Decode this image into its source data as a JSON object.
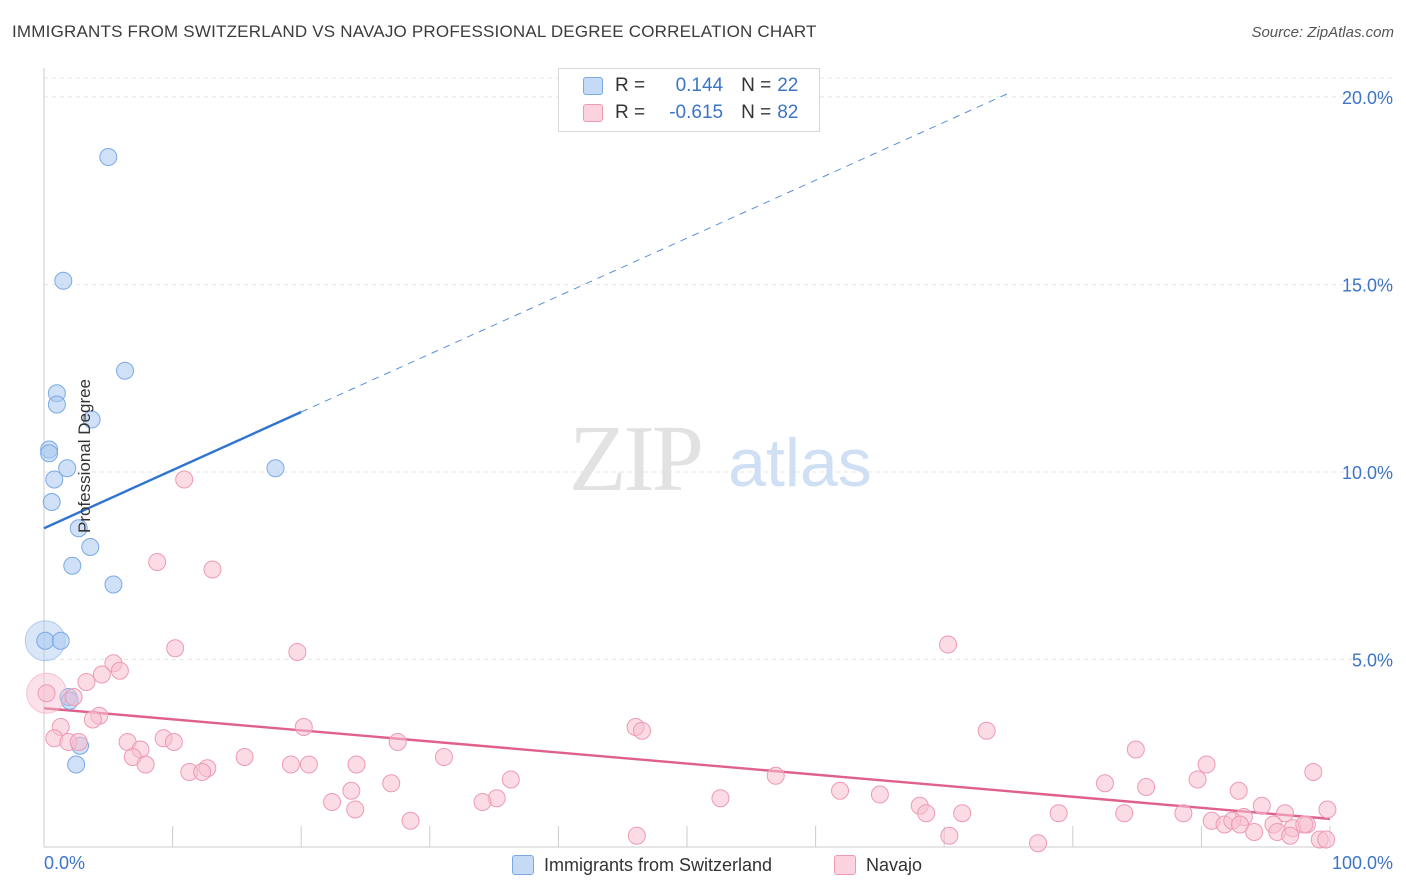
{
  "title": "IMMIGRANTS FROM SWITZERLAND VS NAVAJO PROFESSIONAL DEGREE CORRELATION CHART",
  "source": "Source: ZipAtlas.com",
  "watermark": {
    "zip": "ZIP",
    "atlas": "atlas"
  },
  "legend": {
    "rows": [
      {
        "r_label": "R =",
        "r_value": "0.144",
        "n_label": "N =",
        "n_value": "22",
        "color": "#a9c8f0",
        "border": "#7aaae6"
      },
      {
        "r_label": "R =",
        "r_value": "-0.615",
        "n_label": "N =",
        "n_value": "82",
        "color": "#f7bfd0",
        "border": "#ee9ab5"
      }
    ]
  },
  "bottom_legend": [
    {
      "label": "Immigrants from Switzerland",
      "color": "#a9c8f0",
      "border": "#7aaae6"
    },
    {
      "label": "Navajo",
      "color": "#f7bfd0",
      "border": "#ee9ab5"
    }
  ],
  "chart_data": {
    "type": "scatter",
    "title": "IMMIGRANTS FROM SWITZERLAND VS NAVAJO PROFESSIONAL DEGREE CORRELATION CHART",
    "xlabel": "",
    "ylabel": "Professional Degree",
    "xlim": [
      0,
      100
    ],
    "ylim": [
      0,
      20
    ],
    "x_tick_labels": [
      "0.0%",
      "100.0%"
    ],
    "y_ticks": [
      5,
      10,
      15,
      20
    ],
    "y_tick_labels": [
      "5.0%",
      "10.0%",
      "15.0%",
      "20.0%"
    ],
    "grid": true,
    "series": [
      {
        "name": "Immigrants from Switzerland",
        "color": "#a9c8f0",
        "edge": "#7aaae6",
        "line_color": "#2f74d0",
        "trend": {
          "x0": 0,
          "y0": 8.5,
          "x1": 20,
          "y1": 11.6,
          "dash_to_x": 75,
          "dash_to_y": 20.1
        },
        "points": [
          [
            5.0,
            18.4
          ],
          [
            1.5,
            15.1
          ],
          [
            6.3,
            12.7
          ],
          [
            1.0,
            12.1
          ],
          [
            1.0,
            11.8
          ],
          [
            3.7,
            11.4
          ],
          [
            0.4,
            10.6
          ],
          [
            0.4,
            10.5
          ],
          [
            1.8,
            10.1
          ],
          [
            0.8,
            9.8
          ],
          [
            18.0,
            10.1
          ],
          [
            0.6,
            9.2
          ],
          [
            2.7,
            8.5
          ],
          [
            3.6,
            8.0
          ],
          [
            2.2,
            7.5
          ],
          [
            5.4,
            7.0
          ],
          [
            0.1,
            5.5
          ],
          [
            1.3,
            5.5
          ],
          [
            1.9,
            4.0
          ],
          [
            2.0,
            3.9
          ],
          [
            2.8,
            2.7
          ],
          [
            2.5,
            2.2
          ]
        ],
        "big_point": [
          0.1,
          5.5
        ]
      },
      {
        "name": "Navajo",
        "color": "#f7bfd0",
        "edge": "#ee9ab5",
        "line_color": "#e0608c",
        "trend": {
          "x0": 0,
          "y0": 3.7,
          "x1": 100,
          "y1": 0.75
        },
        "points": [
          [
            10.9,
            9.8
          ],
          [
            8.8,
            7.6
          ],
          [
            13.1,
            7.4
          ],
          [
            10.2,
            5.3
          ],
          [
            19.7,
            5.2
          ],
          [
            70.3,
            5.4
          ],
          [
            5.4,
            4.9
          ],
          [
            4.5,
            4.6
          ],
          [
            3.3,
            4.4
          ],
          [
            5.9,
            4.7
          ],
          [
            2.3,
            4.0
          ],
          [
            4.3,
            3.5
          ],
          [
            3.8,
            3.4
          ],
          [
            1.3,
            3.2
          ],
          [
            20.2,
            3.2
          ],
          [
            46.0,
            3.2
          ],
          [
            46.5,
            3.1
          ],
          [
            73.3,
            3.1
          ],
          [
            0.8,
            2.9
          ],
          [
            1.9,
            2.8
          ],
          [
            2.7,
            2.8
          ],
          [
            6.5,
            2.8
          ],
          [
            9.3,
            2.9
          ],
          [
            10.1,
            2.8
          ],
          [
            27.5,
            2.8
          ],
          [
            7.5,
            2.6
          ],
          [
            6.9,
            2.4
          ],
          [
            15.6,
            2.4
          ],
          [
            31.1,
            2.4
          ],
          [
            84.9,
            2.6
          ],
          [
            7.9,
            2.2
          ],
          [
            12.7,
            2.1
          ],
          [
            19.2,
            2.2
          ],
          [
            20.6,
            2.2
          ],
          [
            24.3,
            2.2
          ],
          [
            11.3,
            2.0
          ],
          [
            12.3,
            2.0
          ],
          [
            90.4,
            2.2
          ],
          [
            56.9,
            1.9
          ],
          [
            98.7,
            2.0
          ],
          [
            89.7,
            1.8
          ],
          [
            27.0,
            1.7
          ],
          [
            36.3,
            1.8
          ],
          [
            82.5,
            1.7
          ],
          [
            85.7,
            1.6
          ],
          [
            23.9,
            1.5
          ],
          [
            61.9,
            1.5
          ],
          [
            65.0,
            1.4
          ],
          [
            92.9,
            1.5
          ],
          [
            22.4,
            1.2
          ],
          [
            35.2,
            1.3
          ],
          [
            34.1,
            1.2
          ],
          [
            52.6,
            1.3
          ],
          [
            68.1,
            1.1
          ],
          [
            24.2,
            1.0
          ],
          [
            68.6,
            0.9
          ],
          [
            71.4,
            0.9
          ],
          [
            78.9,
            0.9
          ],
          [
            84.0,
            0.9
          ],
          [
            88.6,
            0.9
          ],
          [
            94.7,
            1.1
          ],
          [
            96.5,
            0.9
          ],
          [
            99.8,
            1.0
          ],
          [
            28.5,
            0.7
          ],
          [
            93.3,
            0.8
          ],
          [
            90.8,
            0.7
          ],
          [
            91.8,
            0.6
          ],
          [
            92.4,
            0.7
          ],
          [
            93.0,
            0.6
          ],
          [
            95.6,
            0.6
          ],
          [
            97.1,
            0.5
          ],
          [
            98.2,
            0.6
          ],
          [
            94.1,
            0.4
          ],
          [
            95.9,
            0.4
          ],
          [
            96.9,
            0.3
          ],
          [
            99.2,
            0.2
          ],
          [
            46.1,
            0.3
          ],
          [
            70.4,
            0.3
          ],
          [
            77.3,
            0.1
          ],
          [
            99.7,
            0.2
          ],
          [
            98.0,
            0.6
          ],
          [
            0.2,
            4.1
          ]
        ],
        "big_point": [
          0.2,
          4.1
        ]
      }
    ]
  }
}
